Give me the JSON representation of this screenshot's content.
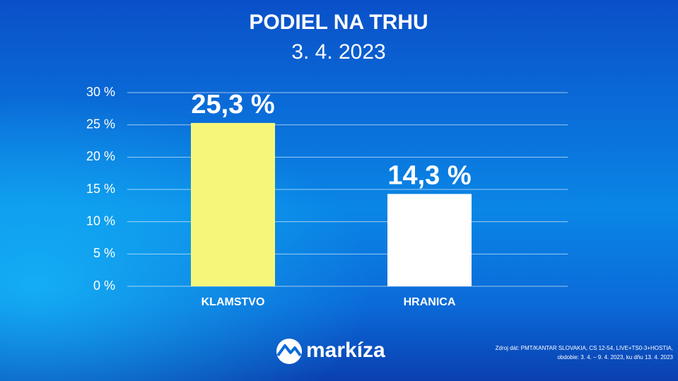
{
  "chart_data": {
    "type": "bar",
    "title": "PODIEL NA TRHU",
    "subtitle": "3. 4. 2023",
    "categories": [
      "KLAMSTVO",
      "HRANICA"
    ],
    "values": [
      25.3,
      14.3
    ],
    "value_labels": [
      "25,3 %",
      "14,3 %"
    ],
    "colors": [
      "#f6f77a",
      "#ffffff"
    ],
    "ylim": [
      0,
      30
    ],
    "yticks": [
      {
        "value": 0,
        "label": "0 %"
      },
      {
        "value": 5,
        "label": "5 %"
      },
      {
        "value": 10,
        "label": "10 %"
      },
      {
        "value": 15,
        "label": "15 %"
      },
      {
        "value": 20,
        "label": "20 %"
      },
      {
        "value": 25,
        "label": "25 %"
      },
      {
        "value": 30,
        "label": "30 %"
      }
    ],
    "grid": true
  },
  "brand": "markíza",
  "source": [
    "Zdroj dát: PMT/KANTAR SLOVAKIA, CS 12-54, LIVE+TS0-3+HOSTIA,",
    "obdobie: 3. 4. – 9. 4. 2023, ku dňu 13. 4. 2023"
  ]
}
